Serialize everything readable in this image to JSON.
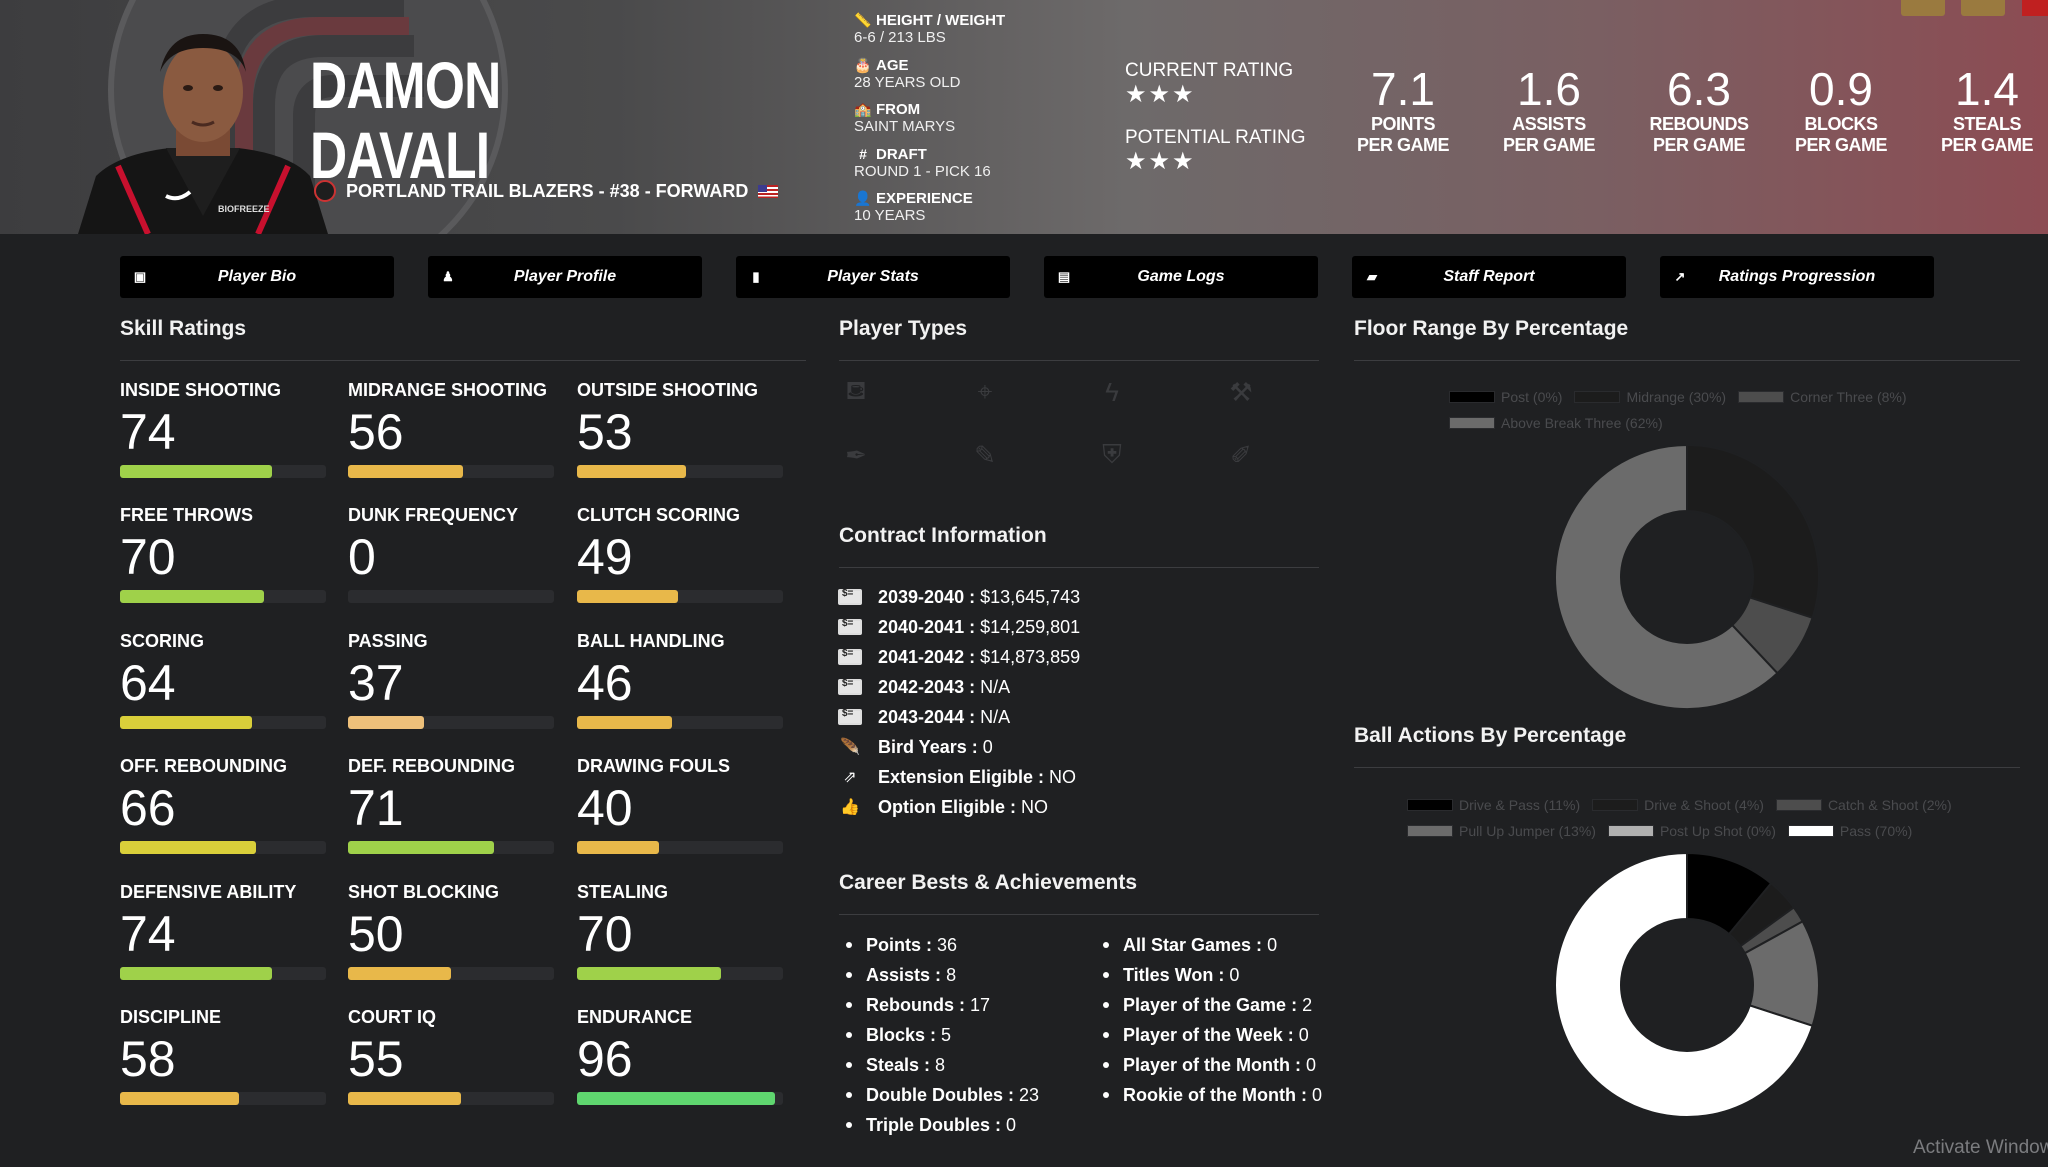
{
  "header": {
    "first_name": "DAMON",
    "last_name": "DAVALI",
    "team_line": "PORTLAND TRAIL BLAZERS - #38 - FORWARD",
    "bio": [
      {
        "label": "HEIGHT / WEIGHT",
        "value": "6-6 / 213 LBS",
        "icon": "ruler-icon"
      },
      {
        "label": "AGE",
        "value": "28 YEARS OLD",
        "icon": "cake-icon"
      },
      {
        "label": "FROM",
        "value": "SAINT MARYS",
        "icon": "school-icon"
      },
      {
        "label": "DRAFT",
        "value": "ROUND 1 - PICK 16",
        "icon": "hash-icon"
      },
      {
        "label": "EXPERIENCE",
        "value": "10 YEARS",
        "icon": "user-clock-icon"
      }
    ],
    "current_rating_label": "CURRENT RATING",
    "current_stars": "★★★",
    "potential_rating_label": "POTENTIAL RATING",
    "potential_stars": "★★★",
    "stats": [
      {
        "value": "7.1",
        "line1": "POINTS",
        "line2": "PER GAME"
      },
      {
        "value": "1.6",
        "line1": "ASSISTS",
        "line2": "PER GAME"
      },
      {
        "value": "6.3",
        "line1": "REBOUNDS",
        "line2": "PER GAME"
      },
      {
        "value": "0.9",
        "line1": "BLOCKS",
        "line2": "PER GAME"
      },
      {
        "value": "1.4",
        "line1": "STEALS",
        "line2": "PER GAME"
      }
    ]
  },
  "nav": [
    {
      "label": "Player Bio",
      "icon": "id-card-icon"
    },
    {
      "label": "Player Profile",
      "icon": "user-tie-icon"
    },
    {
      "label": "Player Stats",
      "icon": "bar-chart-icon"
    },
    {
      "label": "Game Logs",
      "icon": "clipboard-icon"
    },
    {
      "label": "Staff Report",
      "icon": "comment-icon"
    },
    {
      "label": "Ratings Progression",
      "icon": "line-chart-icon"
    }
  ],
  "skills_title": "Skill Ratings",
  "skills": [
    {
      "name": "INSIDE SHOOTING",
      "value": "74",
      "pct": 74,
      "color": "#9fd14a"
    },
    {
      "name": "MIDRANGE SHOOTING",
      "value": "56",
      "pct": 56,
      "color": "#e8b84a"
    },
    {
      "name": "OUTSIDE SHOOTING",
      "value": "53",
      "pct": 53,
      "color": "#e8b84a"
    },
    {
      "name": "FREE THROWS",
      "value": "70",
      "pct": 70,
      "color": "#9fd14a"
    },
    {
      "name": "DUNK FREQUENCY",
      "value": "0",
      "pct": 0,
      "color": "#e8b84a"
    },
    {
      "name": "CLUTCH SCORING",
      "value": "49",
      "pct": 49,
      "color": "#e8b84a"
    },
    {
      "name": "SCORING",
      "value": "64",
      "pct": 64,
      "color": "#d9cf3a"
    },
    {
      "name": "PASSING",
      "value": "37",
      "pct": 37,
      "color": "#eec07a"
    },
    {
      "name": "BALL HANDLING",
      "value": "46",
      "pct": 46,
      "color": "#e8b84a"
    },
    {
      "name": "OFF. REBOUNDING",
      "value": "66",
      "pct": 66,
      "color": "#d9cf3a"
    },
    {
      "name": "DEF. REBOUNDING",
      "value": "71",
      "pct": 71,
      "color": "#9fd14a"
    },
    {
      "name": "DRAWING FOULS",
      "value": "40",
      "pct": 40,
      "color": "#e8b84a"
    },
    {
      "name": "DEFENSIVE ABILITY",
      "value": "74",
      "pct": 74,
      "color": "#9fd14a"
    },
    {
      "name": "SHOT BLOCKING",
      "value": "50",
      "pct": 50,
      "color": "#e8b84a"
    },
    {
      "name": "STEALING",
      "value": "70",
      "pct": 70,
      "color": "#9fd14a"
    },
    {
      "name": "DISCIPLINE",
      "value": "58",
      "pct": 58,
      "color": "#e8b84a"
    },
    {
      "name": "COURT IQ",
      "value": "55",
      "pct": 55,
      "color": "#e8b84a"
    },
    {
      "name": "ENDURANCE",
      "value": "96",
      "pct": 96,
      "color": "#5fd66f"
    }
  ],
  "player_types_title": "Player Types",
  "player_types": [
    "paint-bucket-icon",
    "crosshair-icon",
    "bolt-icon",
    "paint-roller-icon",
    "pen-nib-icon",
    "magic-wand-icon",
    "shield-icon",
    "brush-icon"
  ],
  "contract_title": "Contract Information",
  "contract": [
    {
      "key": "2039-2040 :",
      "value": "$13,645,743",
      "icon": "money-card-icon"
    },
    {
      "key": "2040-2041 :",
      "value": "$14,259,801",
      "icon": "money-card-icon"
    },
    {
      "key": "2041-2042 :",
      "value": "$14,873,859",
      "icon": "money-card-icon"
    },
    {
      "key": "2042-2043 :",
      "value": "N/A",
      "icon": "money-card-icon"
    },
    {
      "key": "2043-2044 :",
      "value": "N/A",
      "icon": "money-card-icon"
    },
    {
      "key": "Bird Years :",
      "value": "0",
      "icon": "feather-icon"
    },
    {
      "key": "Extension Eligible :",
      "value": "NO",
      "icon": "external-link-icon"
    },
    {
      "key": "Option Eligible :",
      "value": "NO",
      "icon": "thumbs-up-icon"
    }
  ],
  "career_title": "Career Bests & Achievements",
  "career_left": [
    {
      "key": "Points :",
      "value": "36"
    },
    {
      "key": "Assists :",
      "value": "8"
    },
    {
      "key": "Rebounds :",
      "value": "17"
    },
    {
      "key": "Blocks :",
      "value": "5"
    },
    {
      "key": "Steals :",
      "value": "8"
    },
    {
      "key": "Double Doubles :",
      "value": "23"
    },
    {
      "key": "Triple Doubles :",
      "value": "0"
    }
  ],
  "career_right": [
    {
      "key": "All Star Games :",
      "value": "0"
    },
    {
      "key": "Titles Won :",
      "value": "0"
    },
    {
      "key": "Player of the Game :",
      "value": "2"
    },
    {
      "key": "Player of the Week :",
      "value": "0"
    },
    {
      "key": "Player of the Month :",
      "value": "0"
    },
    {
      "key": "Rookie of the Month :",
      "value": "0"
    }
  ],
  "floor_title": "Floor Range By Percentage",
  "ball_title": "Ball Actions By Percentage",
  "chart_data": [
    {
      "type": "pie",
      "title": "Floor Range By Percentage",
      "legend_position": "top",
      "categories": [
        "Post (0%)",
        "Midrange (30%)",
        "Corner Three (8%)",
        "Above Break Three (62%)"
      ],
      "values": [
        0,
        30,
        8,
        62
      ],
      "colors": [
        "#000000",
        "#1c1c1c",
        "#4d4d4d",
        "#6b6b6b"
      ]
    },
    {
      "type": "pie",
      "title": "Ball Actions By Percentage",
      "legend_position": "top",
      "categories": [
        "Drive & Pass (11%)",
        "Drive & Shoot (4%)",
        "Catch & Shoot (2%)",
        "Pull Up Jumper (13%)",
        "Post Up Shot (0%)",
        "Pass (70%)"
      ],
      "values": [
        11,
        4,
        2,
        13,
        0,
        70
      ],
      "colors": [
        "#000000",
        "#1c1c1c",
        "#4d4d4d",
        "#6b6b6b",
        "#b0b0b0",
        "#ffffff"
      ]
    }
  ],
  "watermark": "Activate Windows"
}
